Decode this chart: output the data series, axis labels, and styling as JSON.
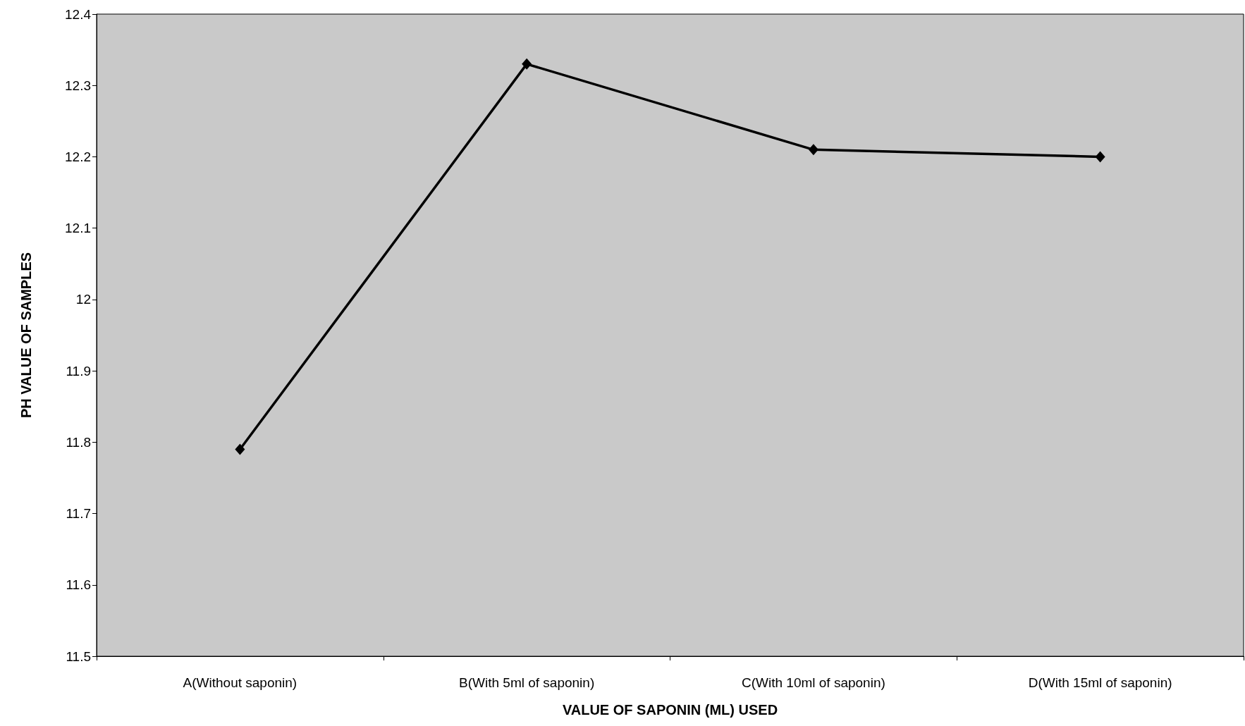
{
  "chart_data": {
    "type": "line",
    "xlabel": "VALUE OF SAPONIN (ML) USED",
    "ylabel": "PH VALUE OF SAMPLES",
    "categories": [
      "A(Without saponin)",
      "B(With 5ml of saponin)",
      "C(With 10ml of saponin)",
      "D(With 15ml of saponin)"
    ],
    "series": [
      {
        "color": "#000000",
        "values": [
          11.79,
          12.33,
          12.21,
          12.2
        ]
      }
    ],
    "ylim": [
      11.5,
      12.4
    ],
    "yticks": [
      11.5,
      11.6,
      11.7,
      11.8,
      11.9,
      12,
      12.1,
      12.2,
      12.3,
      12.4
    ],
    "grid": false,
    "marker": "diamond",
    "line_style": "solid"
  }
}
